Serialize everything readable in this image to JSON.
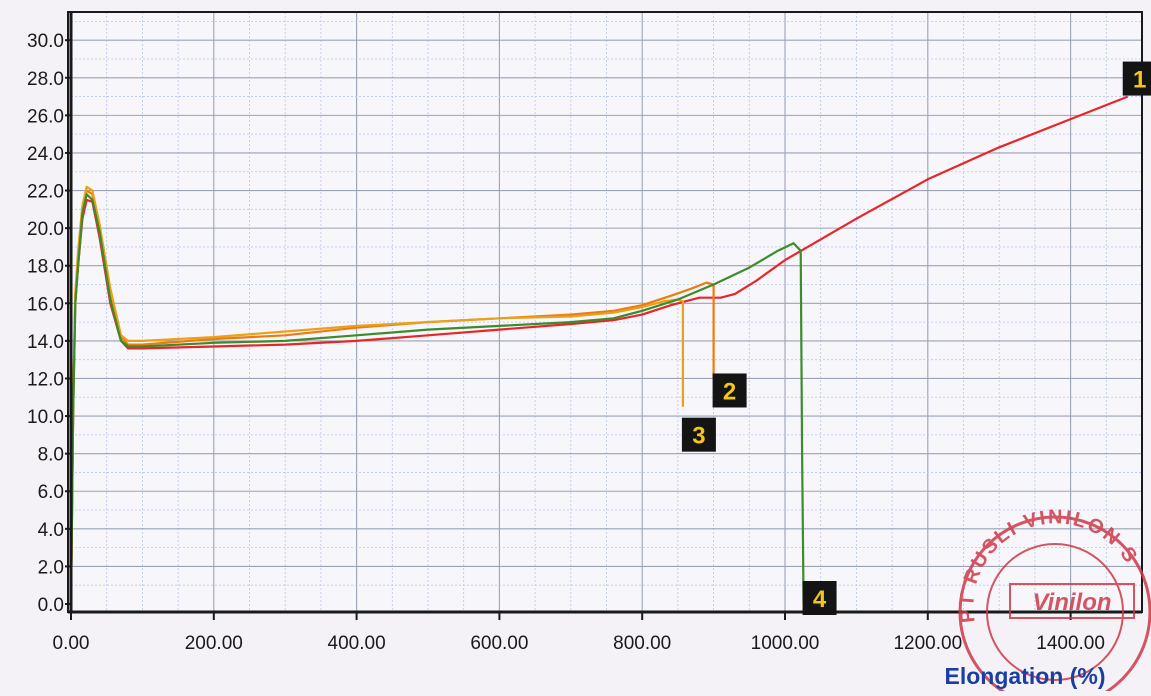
{
  "chart_data": {
    "type": "line",
    "title": "",
    "xlabel": "Elongation (%)",
    "ylabel": "",
    "xlim": [
      0,
      1500
    ],
    "ylim": [
      0,
      31.5
    ],
    "grid": true,
    "x_ticks": [
      "0.00",
      "200.00",
      "400.00",
      "600.00",
      "800.00",
      "1000.00",
      "1200.00",
      "1400.00"
    ],
    "x_tick_values": [
      0,
      200,
      400,
      600,
      800,
      1000,
      1200,
      1400
    ],
    "y_ticks": [
      "0.0",
      "2.0",
      "4.0",
      "6.0",
      "8.0",
      "10.0",
      "12.0",
      "14.0",
      "16.0",
      "18.0",
      "20.0",
      "22.0",
      "24.0",
      "26.0",
      "28.0",
      "30.0"
    ],
    "y_tick_values": [
      0,
      2,
      4,
      6,
      8,
      10,
      12,
      14,
      16,
      18,
      20,
      22,
      24,
      26,
      28,
      30
    ],
    "series": [
      {
        "label": "1",
        "color": "#e8262a",
        "x": [
          0,
          3,
          6,
          10,
          16,
          22,
          30,
          40,
          55,
          70,
          80,
          100,
          200,
          300,
          400,
          500,
          600,
          700,
          760,
          800,
          840,
          880,
          910,
          930,
          960,
          1000,
          1100,
          1200,
          1300,
          1400,
          1480
        ],
        "y": [
          0,
          10,
          16,
          18,
          20.5,
          21.5,
          21.4,
          19.5,
          16,
          14,
          13.6,
          13.6,
          13.7,
          13.8,
          14,
          14.3,
          14.6,
          14.9,
          15.1,
          15.4,
          15.9,
          16.3,
          16.3,
          16.5,
          17.2,
          18.3,
          20.5,
          22.6,
          24.3,
          25.8,
          27.0
        ]
      },
      {
        "label": "2",
        "color": "#f07a10",
        "x": [
          0,
          3,
          6,
          10,
          16,
          22,
          30,
          40,
          55,
          70,
          80,
          100,
          200,
          300,
          400,
          500,
          600,
          700,
          760,
          800,
          840,
          870,
          890,
          900,
          900
        ],
        "y": [
          0,
          10.5,
          16.5,
          18.5,
          21,
          22.0,
          21.8,
          20,
          16.5,
          14.2,
          13.8,
          13.8,
          14.1,
          14.3,
          14.7,
          15.0,
          15.2,
          15.4,
          15.6,
          15.9,
          16.4,
          16.8,
          17.1,
          17.0,
          12.0
        ]
      },
      {
        "label": "3",
        "color": "#e8a21a",
        "x": [
          0,
          3,
          6,
          10,
          16,
          22,
          30,
          40,
          55,
          70,
          80,
          100,
          200,
          300,
          400,
          500,
          600,
          700,
          760,
          800,
          830,
          850,
          857,
          857
        ],
        "y": [
          0,
          10.5,
          16.5,
          18.8,
          21.2,
          22.2,
          22.0,
          20.2,
          16.8,
          14.3,
          14.0,
          14.0,
          14.2,
          14.5,
          14.8,
          15.0,
          15.2,
          15.3,
          15.5,
          15.8,
          16.1,
          16.2,
          16.1,
          10.5
        ]
      },
      {
        "label": "4",
        "color": "#3c8c2a",
        "x": [
          0,
          3,
          6,
          10,
          16,
          22,
          30,
          40,
          55,
          70,
          80,
          100,
          200,
          300,
          400,
          500,
          600,
          700,
          760,
          800,
          850,
          900,
          950,
          990,
          1012,
          1022,
          1024,
          1026
        ],
        "y": [
          0,
          10,
          16,
          18,
          20.8,
          21.8,
          21.5,
          19.8,
          16.2,
          14.0,
          13.7,
          13.7,
          13.9,
          14.0,
          14.3,
          14.6,
          14.8,
          15.0,
          15.2,
          15.6,
          16.2,
          17.0,
          17.9,
          18.8,
          19.2,
          18.8,
          8.0,
          0
        ]
      }
    ]
  },
  "stamp": {
    "ring_text": "PT RUSLI VINILON S",
    "logo_text": "Vinilon",
    "color": "#d03848"
  }
}
